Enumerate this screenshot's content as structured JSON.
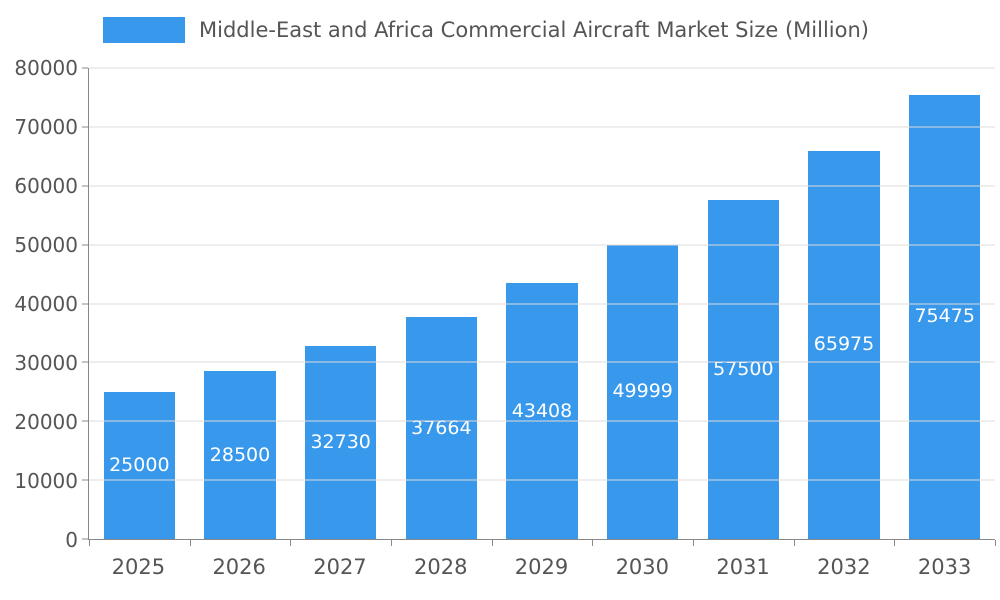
{
  "chart_data": {
    "type": "bar",
    "title": "Middle-East and Africa Commercial Aircraft Market Size (Million)",
    "categories": [
      "2025",
      "2026",
      "2027",
      "2028",
      "2029",
      "2030",
      "2031",
      "2032",
      "2033"
    ],
    "values": [
      25000,
      28500,
      32730,
      37664,
      43408,
      49999,
      57500,
      65975,
      75475
    ],
    "xlabel": "",
    "ylabel": "",
    "ylim": [
      0,
      80000
    ],
    "ytick_step": 10000,
    "grid": true,
    "legend_position": "top-left",
    "value_labels": "inside-center-white",
    "colors": {
      "bar": "#3898ec",
      "grid": "#dddddd",
      "axis": "#888888",
      "label": "#555555",
      "value_label": "#ffffff"
    }
  }
}
